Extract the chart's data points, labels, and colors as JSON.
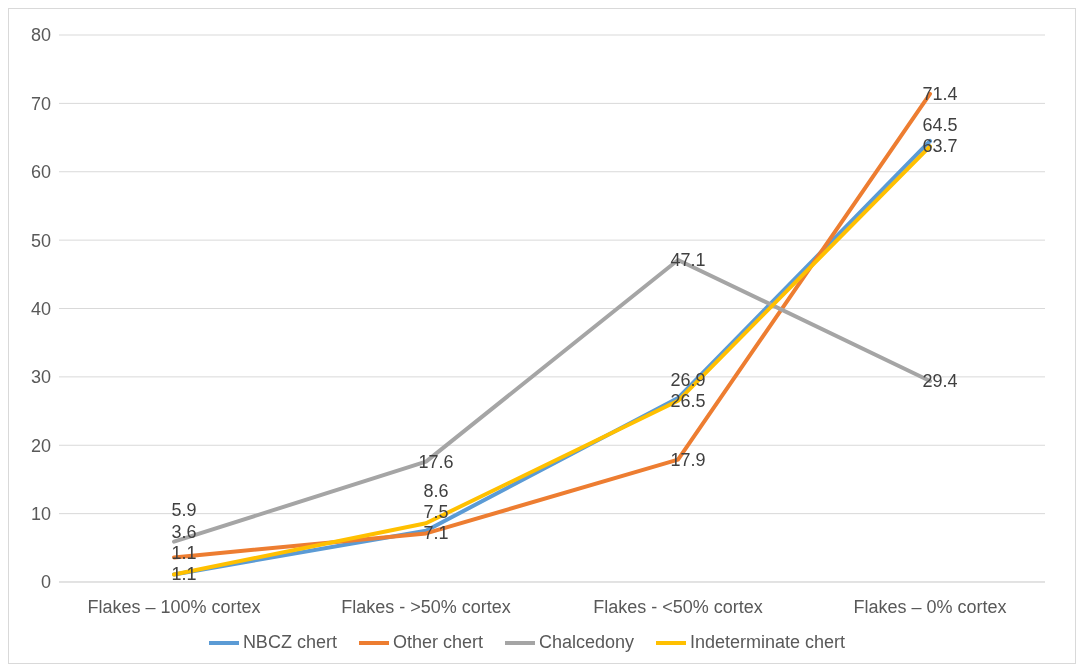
{
  "chart_data": {
    "type": "line",
    "categories": [
      "Flakes – 100% cortex",
      "Flakes - >50% cortex",
      "Flakes - <50% cortex",
      "Flakes – 0% cortex"
    ],
    "series": [
      {
        "name": "NBCZ chert",
        "color": "#5b9bd5",
        "values": [
          1.1,
          7.5,
          26.9,
          64.5
        ]
      },
      {
        "name": "Other chert",
        "color": "#ed7d31",
        "values": [
          3.6,
          7.1,
          17.9,
          71.4
        ]
      },
      {
        "name": "Chalcedony",
        "color": "#a5a5a5",
        "values": [
          5.9,
          17.6,
          47.1,
          29.4
        ]
      },
      {
        "name": "Indeterminate chert",
        "color": "#ffc000",
        "values": [
          1.1,
          8.6,
          26.5,
          63.7
        ]
      }
    ],
    "ylim": [
      0,
      80
    ],
    "yticks": [
      0,
      10,
      20,
      30,
      40,
      50,
      60,
      70,
      80
    ],
    "grid": "y",
    "legend": "bottom",
    "marker": "none",
    "line_style": "solid",
    "data_labels": true
  }
}
